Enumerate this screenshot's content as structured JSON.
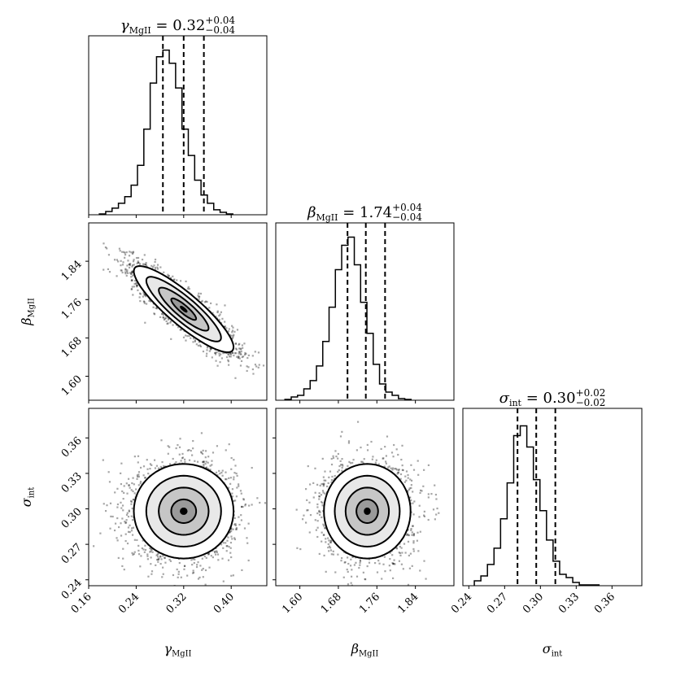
{
  "chart_data": {
    "type": "corner",
    "parameters": [
      {
        "symbol": "γ",
        "subscript": "MgII",
        "title_value": "0.32",
        "err_plus": "+0.04",
        "err_minus": "−0.04",
        "axis_range": [
          0.16,
          0.46
        ],
        "ticks": [
          0.16,
          0.24,
          0.32,
          0.4
        ],
        "tick_labels": [
          "0.16",
          "0.24",
          "0.32",
          "0.40"
        ],
        "quantiles": [
          0.285,
          0.32,
          0.354
        ],
        "hist_x0": 0.178,
        "hist_dx": 0.0107,
        "hist_counts": [
          0.005,
          0.02,
          0.04,
          0.07,
          0.11,
          0.18,
          0.3,
          0.52,
          0.8,
          0.96,
          1.0,
          0.92,
          0.77,
          0.52,
          0.36,
          0.21,
          0.12,
          0.07,
          0.03,
          0.015,
          0.005
        ]
      },
      {
        "symbol": "β",
        "subscript": "MgII",
        "title_value": "1.74",
        "err_plus": "+0.04",
        "err_minus": "−0.04",
        "axis_range": [
          1.55,
          1.92
        ],
        "ticks": [
          1.6,
          1.68,
          1.76,
          1.84
        ],
        "tick_labels": [
          "1.60",
          "1.68",
          "1.76",
          "1.84"
        ],
        "quantiles": [
          1.699,
          1.737,
          1.777
        ],
        "hist_x0": 1.569,
        "hist_dx": 0.0131,
        "hist_counts": [
          0.005,
          0.02,
          0.03,
          0.07,
          0.12,
          0.21,
          0.36,
          0.57,
          0.8,
          0.95,
          1.0,
          0.83,
          0.6,
          0.41,
          0.22,
          0.1,
          0.05,
          0.03,
          0.01,
          0.005
        ]
      },
      {
        "symbol": "σ",
        "subscript": "int",
        "title_value": "0.30",
        "err_plus": "+0.02",
        "err_minus": "−0.02",
        "axis_range": [
          0.235,
          0.385
        ],
        "ticks": [
          0.24,
          0.27,
          0.3,
          0.33,
          0.36
        ],
        "tick_labels": [
          "0.24",
          "0.27",
          "0.30",
          "0.33",
          "0.36"
        ],
        "quantiles": [
          0.2808,
          0.2965,
          0.3125
        ],
        "hist_x0": 0.2446,
        "hist_dx": 0.0055,
        "hist_counts": [
          0.03,
          0.06,
          0.13,
          0.23,
          0.41,
          0.63,
          0.92,
          0.98,
          0.85,
          0.65,
          0.46,
          0.28,
          0.15,
          0.07,
          0.05,
          0.02,
          0.005,
          0.005,
          0.005
        ]
      }
    ],
    "pairs": [
      {
        "x": 0,
        "y": 1,
        "mean": [
          0.32,
          1.74
        ],
        "std": [
          0.042,
          0.045
        ],
        "corr": -0.88
      },
      {
        "x": 0,
        "y": 2,
        "mean": [
          0.32,
          0.298
        ],
        "std": [
          0.042,
          0.02
        ],
        "corr": 0.0
      },
      {
        "x": 1,
        "y": 2,
        "mean": [
          1.74,
          0.298
        ],
        "std": [
          0.045,
          0.02
        ],
        "corr": 0.0
      }
    ],
    "contour_levels_sigma": [
      0.5,
      1.0,
      1.5,
      2.0
    ]
  }
}
